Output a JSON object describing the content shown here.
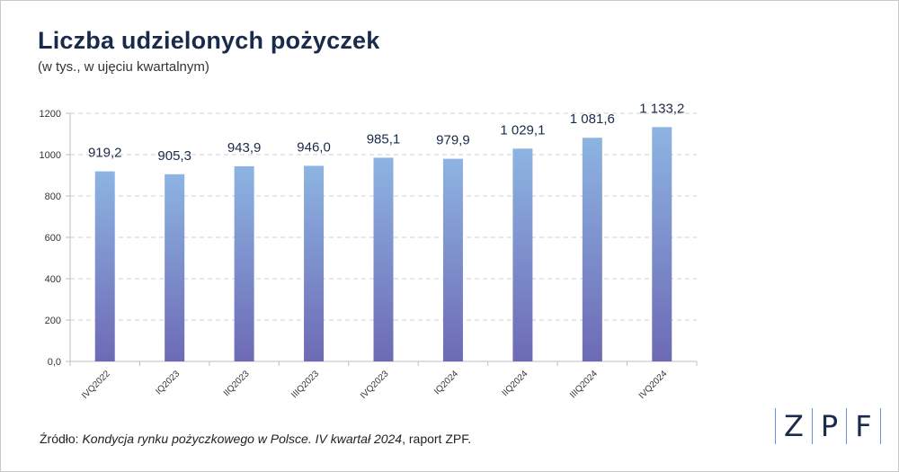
{
  "header": {
    "title": "Liczba udzielonych pożyczek",
    "subtitle": "(w tys., w ujęciu kwartalnym)"
  },
  "source": {
    "prefix": "Źródło: ",
    "italic": "Kondycja rynku pożyczkowego w Polsce. IV kwartał 2024",
    "suffix": ", raport ZPF."
  },
  "logo": {
    "letters": [
      "Z",
      "P",
      "F"
    ]
  },
  "colors": {
    "bar_top": "#8db4e2",
    "bar_bottom": "#6d6ab5",
    "grid": "#d0d0d0",
    "axis": "#bfbfbf",
    "text": "#1a2a4a"
  },
  "chart_data": {
    "type": "bar",
    "categories": [
      "IVQ2022",
      "IQ2023",
      "IIQ2023",
      "IIIQ2023",
      "IVQ2023",
      "IQ2024",
      "IIQ2024",
      "IIIQ2024",
      "IVQ2024"
    ],
    "values": [
      919.2,
      905.3,
      943.9,
      946.0,
      985.1,
      979.9,
      1029.1,
      1081.6,
      1133.2
    ],
    "data_labels": [
      "919,2",
      "905,3",
      "943,9",
      "946,0",
      "985,1",
      "979,9",
      "1 029,1",
      "1 081,6",
      "1 133,2"
    ],
    "y_ticks": [
      0,
      200,
      400,
      600,
      800,
      1000,
      1200
    ],
    "y_tick_labels": [
      "0,0",
      "200",
      "400",
      "600",
      "800",
      "1000",
      "1200"
    ],
    "ylim": [
      0,
      1200
    ],
    "grid": true,
    "legend": "none"
  }
}
